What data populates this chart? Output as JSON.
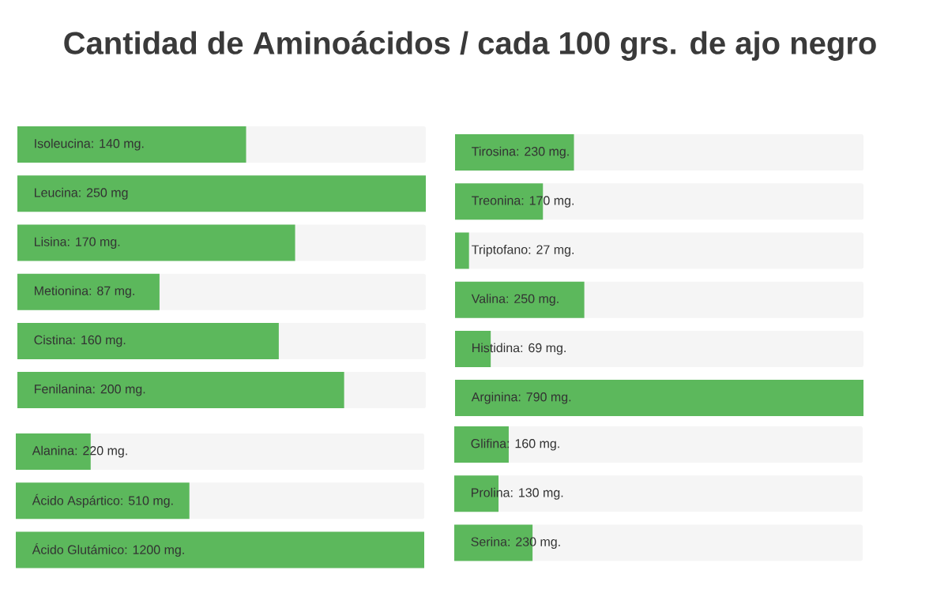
{
  "chart_data": [
    {
      "type": "bar",
      "orientation": "horizontal",
      "title": "Cantidad de Aminoácidos / cada 100 grs. de ajo negro",
      "categories": [
        null,
        null,
        null,
        null,
        null,
        null
      ],
      "values": [
        140,
        250,
        170,
        87,
        160,
        200
      ],
      "value_labels": [
        "Isoleucina: 140 mg.",
        "Leucina: 250 mg",
        "Lisina: 170 mg.",
        "Metionina: 87 mg.",
        "Cistina: 160 mg.",
        "Fenilanina: 200 mg."
      ],
      "color": "#5cb85c",
      "xlim": [
        0,
        250
      ],
      "tick_labels": false
    },
    {
      "type": "bar",
      "orientation": "horizontal",
      "categories": [
        null,
        null,
        null
      ],
      "values": [
        220,
        510,
        1200
      ],
      "value_labels": [
        "Alanina: 220 mg.",
        "Ácido Aspártico: 510 mg.",
        "Ácido Glutámico: 1200 mg."
      ],
      "color": "#5cb85c",
      "xlim": [
        0,
        1200
      ],
      "tick_labels": false
    },
    {
      "type": "bar",
      "orientation": "horizontal",
      "categories": [
        null,
        null,
        null,
        null,
        null,
        null
      ],
      "values": [
        230,
        170,
        27,
        250,
        69,
        790
      ],
      "value_labels": [
        "Tirosina: 230 mg.",
        "Treonina: 170 mg.",
        "Triptofano: 27 mg.",
        "Valina: 250 mg.",
        "Histidina: 69 mg.",
        "Arginina: 790 mg."
      ],
      "color": "#5cb85c",
      "xlim": [
        0,
        790
      ],
      "tick_labels": false
    },
    {
      "type": "bar",
      "orientation": "horizontal",
      "categories": [
        null,
        null,
        null
      ],
      "values": [
        160,
        130,
        230
      ],
      "value_labels": [
        "Glifina: 160 mg.",
        "Prolina: 130 mg.",
        "Serina: 230 mg."
      ],
      "color": "#5cb85c",
      "xlim": [
        0,
        1200
      ],
      "tick_labels": false
    }
  ]
}
